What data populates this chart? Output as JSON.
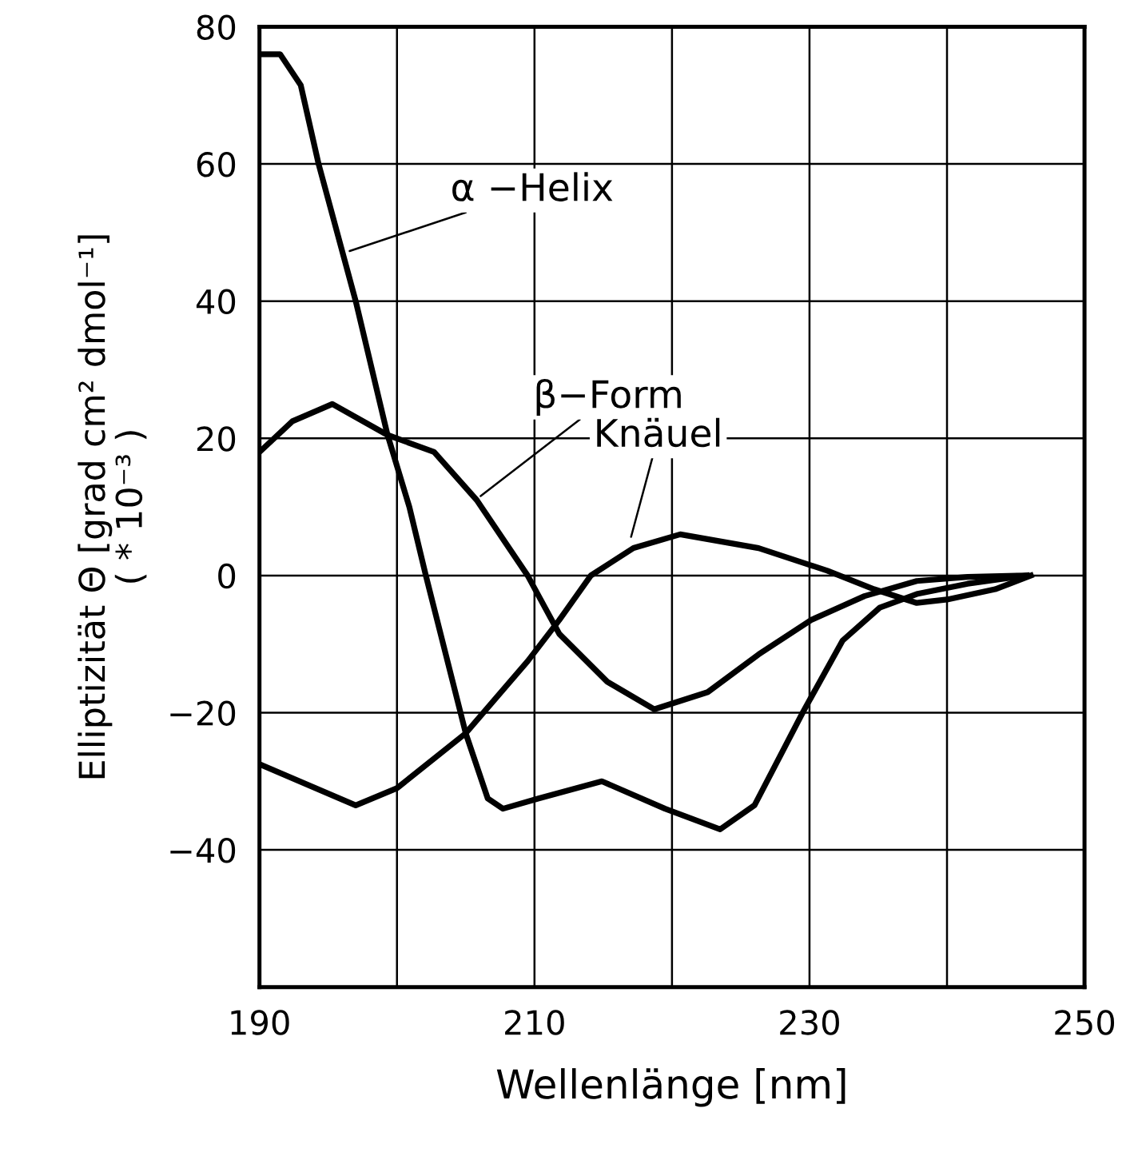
{
  "chart_data": {
    "type": "line",
    "xlabel": "Wellenlänge [nm]",
    "ylabel": "Elliptizität Θ [grad cm² dmol⁻¹]\n( * 10⁻³ )",
    "xlim": [
      190,
      250
    ],
    "ylim": [
      -60,
      80
    ],
    "xticks": [
      190,
      {
        "value": 200,
        "label": null
      },
      210,
      {
        "value": 220,
        "label": null
      },
      230,
      {
        "value": 240,
        "label": null
      },
      250
    ],
    "yticks": [
      {
        "value": -60,
        "label": null
      },
      -40,
      -20,
      0,
      20,
      40,
      60,
      80
    ],
    "grid": true,
    "marker": "none",
    "line_style": "solid",
    "series": [
      {
        "color": "#000000",
        "x": [
          190,
          191.5,
          193,
          194.3,
          197,
          199.3,
          200.9,
          202.1,
          205,
          206.6,
          207.7,
          210.3,
          214.9,
          219.5,
          223.5,
          226,
          229.5,
          232.4,
          235.1,
          237.8,
          241.5,
          245.8
        ],
        "values": [
          76,
          76,
          71.5,
          60,
          40,
          20.6,
          10,
          0,
          -23,
          -32.5,
          -34,
          -32.5,
          -30,
          -34,
          -37,
          -33.5,
          -20,
          -9.5,
          -4.7,
          -2.7,
          -1.2,
          0
        ]
      },
      {
        "color": "#000000",
        "x": [
          190,
          192.4,
          195.3,
          199.3,
          202.7,
          205.8,
          209.5,
          211.8,
          215.3,
          218.7,
          222.6,
          226.3,
          230.1,
          234,
          237.8,
          241.5,
          245.8
        ],
        "values": [
          18,
          22.5,
          25,
          20.5,
          18,
          11,
          0,
          -8.5,
          -15.5,
          -19.5,
          -17,
          -11.5,
          -6.5,
          -3,
          -0.8,
          -0.2,
          0
        ]
      },
      {
        "color": "#000000",
        "x": [
          190,
          197,
          200,
          205,
          209.5,
          211.8,
          214.1,
          217.2,
          220.6,
          226.3,
          231.3,
          234.7,
          237.8,
          240,
          243.5,
          246.1
        ],
        "values": [
          -27.5,
          -33.5,
          -31,
          -23,
          -12.5,
          -6.5,
          0,
          4,
          6,
          4,
          0.7,
          -2,
          -4,
          -3.5,
          -2,
          0
        ]
      }
    ],
    "annotations": [
      {
        "text": "α −Helix",
        "x": 196.1,
        "y": 47
      },
      {
        "text": "β−Form",
        "x": 205.7,
        "y": 11
      },
      {
        "text": "Knäuel",
        "x": 216.9,
        "y": 4.7
      }
    ]
  }
}
